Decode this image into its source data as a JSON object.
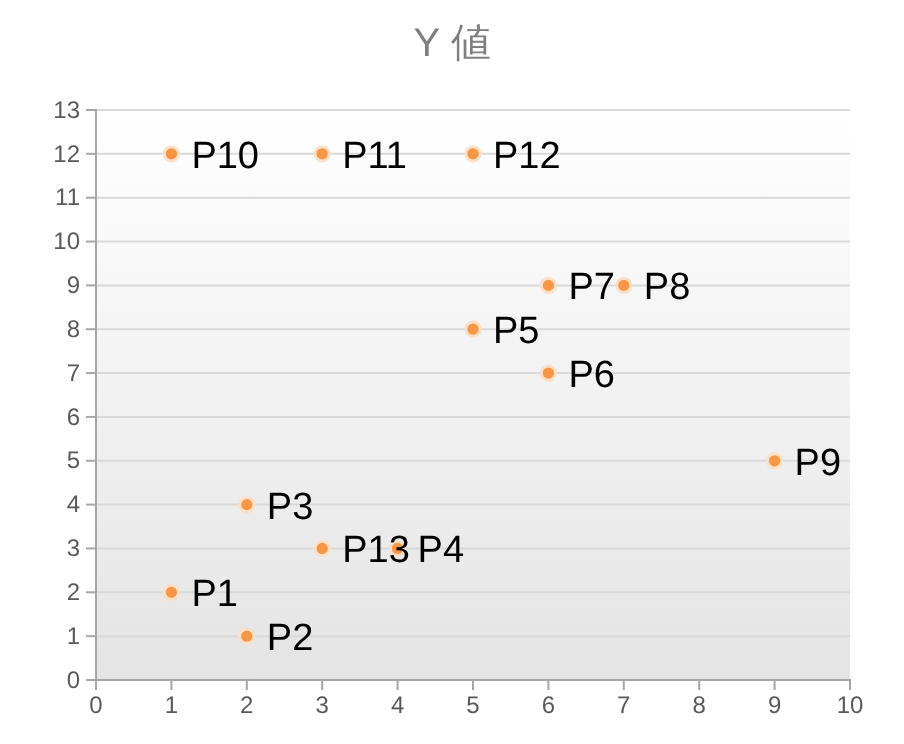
{
  "chart_data": {
    "type": "scatter",
    "title": "Y 値",
    "x": [
      1,
      2,
      2,
      3,
      4,
      5,
      6,
      6,
      7,
      9,
      1,
      3,
      5
    ],
    "values": [
      2,
      1,
      4,
      3,
      3,
      8,
      7,
      9,
      9,
      5,
      12,
      12,
      12
    ],
    "color": "#f79646",
    "marker": "circle",
    "grid": "y",
    "xlim": [
      0,
      10
    ],
    "xticks": [
      0,
      1,
      2,
      3,
      4,
      5,
      6,
      7,
      8,
      9,
      10
    ],
    "ylim": [
      0,
      13
    ],
    "yticks": [
      0,
      1,
      2,
      3,
      4,
      5,
      6,
      7,
      8,
      9,
      10,
      11,
      12,
      13
    ],
    "annotations": [
      {
        "text": "P1",
        "x": 1,
        "y": 2
      },
      {
        "text": "P2",
        "x": 2,
        "y": 1
      },
      {
        "text": "P3",
        "x": 2,
        "y": 4
      },
      {
        "text": "P13",
        "x": 3,
        "y": 3
      },
      {
        "text": "P4",
        "x": 4,
        "y": 3
      },
      {
        "text": "P5",
        "x": 5,
        "y": 8
      },
      {
        "text": "P6",
        "x": 6,
        "y": 7
      },
      {
        "text": "P7",
        "x": 6,
        "y": 9
      },
      {
        "text": "P8",
        "x": 7,
        "y": 9
      },
      {
        "text": "P9",
        "x": 9,
        "y": 5
      },
      {
        "text": "P10",
        "x": 1,
        "y": 12
      },
      {
        "text": "P11",
        "x": 3,
        "y": 12
      },
      {
        "text": "P12",
        "x": 5,
        "y": 12
      }
    ]
  }
}
